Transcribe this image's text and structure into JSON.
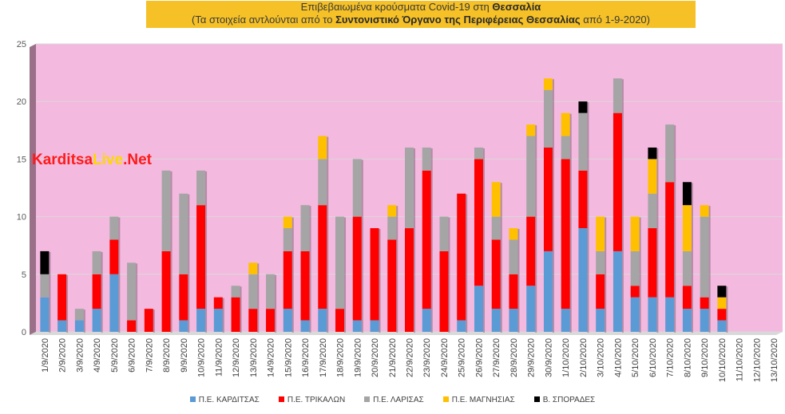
{
  "title": {
    "line1_prefix": "Επιβεβαιωμένα κρούσματα Covid-19 στη ",
    "line1_bold": "Θεσσαλία",
    "line2_prefix": "(Τα στοιχεία αντλούνται από το ",
    "line2_bold": "Συντονιστικό Όργανο της Περιφέρειας Θεσσαλίας",
    "line2_suffix": " από 1-9-2020)"
  },
  "watermark": {
    "part1": "Karditsa",
    "part2": "Live",
    "part3": ".Net",
    "color1": "#ff1a1a",
    "color2": "#ffd700",
    "color3": "#ff1a1a"
  },
  "colors": {
    "background": "#ffffff",
    "plot_area": "#f3b9df",
    "gridline": "#d9d9d9",
    "title_bg": "#f5c127"
  },
  "chart_data": {
    "type": "bar",
    "stacked": true,
    "orientation": "vertical",
    "ylim": [
      0,
      25
    ],
    "yticks": [
      0,
      5,
      10,
      15,
      20,
      25
    ],
    "grid": true,
    "legend_position": "bottom",
    "categories": [
      "1/9/2020",
      "2/9/2020",
      "3/9/2020",
      "4/9/2020",
      "5/9/2020",
      "6/9/2020",
      "7/9/2020",
      "8/9/2020",
      "9/9/2020",
      "10/9/2020",
      "11/9/2020",
      "12/9/2020",
      "13/9/2020",
      "14/9/2020",
      "15/9/2020",
      "16/9/2020",
      "17/9/2020",
      "18/9/2020",
      "19/9/2020",
      "20/9/2020",
      "21/9/2020",
      "22/9/2020",
      "23/9/2020",
      "24/9/2020",
      "25/9/2020",
      "26/9/2020",
      "27/9/2020",
      "28/9/2020",
      "29/9/2020",
      "30/9/2020",
      "1/10/2020",
      "2/10/2020",
      "3/10/2020",
      "4/10/2020",
      "5/10/2020",
      "6/10/2020",
      "7/10/2020",
      "8/10/2020",
      "9/10/2020",
      "10/10/2020",
      "11/10/2020",
      "12/10/2020",
      "13/10/2020"
    ],
    "series": [
      {
        "name": "Π.Ε. ΚΑΡΔΙΤΣΑΣ",
        "color": "#5b9bd5",
        "values": [
          3,
          1,
          1,
          2,
          5,
          0,
          0,
          0,
          1,
          2,
          2,
          0,
          0,
          0,
          2,
          1,
          2,
          0,
          1,
          1,
          0,
          0,
          2,
          0,
          1,
          4,
          2,
          2,
          4,
          7,
          2,
          9,
          2,
          7,
          3,
          3,
          3,
          2,
          2,
          1,
          0,
          0,
          0
        ]
      },
      {
        "name": "Π.Ε. ΤΡΙΚΑΛΩΝ",
        "color": "#ff0000",
        "values": [
          0,
          4,
          0,
          3,
          3,
          1,
          2,
          7,
          4,
          9,
          1,
          3,
          2,
          2,
          5,
          6,
          9,
          2,
          9,
          8,
          8,
          9,
          12,
          7,
          11,
          11,
          6,
          3,
          6,
          9,
          13,
          5,
          3,
          12,
          1,
          6,
          10,
          2,
          1,
          1,
          0,
          0,
          0
        ]
      },
      {
        "name": "Π.Ε. ΛΑΡΙΣΑΣ",
        "color": "#a5a5a5",
        "values": [
          2,
          0,
          1,
          2,
          2,
          5,
          0,
          7,
          7,
          3,
          0,
          1,
          3,
          3,
          2,
          4,
          4,
          8,
          5,
          0,
          2,
          7,
          2,
          3,
          0,
          1,
          2,
          3,
          7,
          5,
          2,
          5,
          2,
          3,
          3,
          3,
          5,
          3,
          7,
          0,
          0,
          0,
          0
        ]
      },
      {
        "name": "Π.Ε. ΜΑΓΝΗΣΙΑΣ",
        "color": "#ffc000",
        "values": [
          0,
          0,
          0,
          0,
          0,
          0,
          0,
          0,
          0,
          0,
          0,
          0,
          1,
          0,
          1,
          0,
          2,
          0,
          0,
          0,
          1,
          0,
          0,
          0,
          0,
          0,
          3,
          1,
          1,
          1,
          2,
          0,
          3,
          0,
          3,
          3,
          0,
          4,
          1,
          1,
          0,
          0,
          0
        ]
      },
      {
        "name": "Β. ΣΠΟΡΑΔΕΣ",
        "color": "#000000",
        "values": [
          2,
          0,
          0,
          0,
          0,
          0,
          0,
          0,
          0,
          0,
          0,
          0,
          0,
          0,
          0,
          0,
          0,
          0,
          0,
          0,
          0,
          0,
          0,
          0,
          0,
          0,
          0,
          0,
          0,
          0,
          0,
          1,
          0,
          0,
          0,
          1,
          0,
          2,
          0,
          1,
          0,
          0,
          0
        ]
      }
    ]
  }
}
